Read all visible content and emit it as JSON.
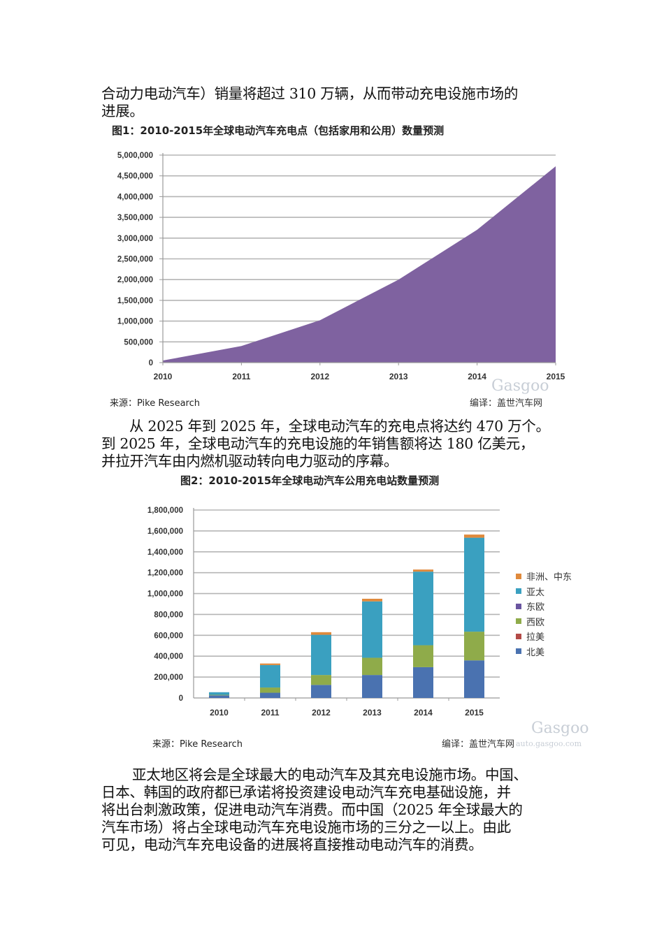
{
  "paragraphs": {
    "p1": [
      "合动力电动汽车）销量将超过 310 万辆，从而带动充电设施市场的",
      "进展。"
    ],
    "p2": [
      "从 2025 年到 2025 年，全球电动汽车的充电点将达约 470 万个。",
      "到 2025 年，全球电动汽车的充电设施的年销售额将达 180 亿美元，",
      "并拉开汽车由内燃机驱动转向电力驱动的序幕。"
    ],
    "p3": [
      "亚太地区将会是全球最大的电动汽车及其充电设施市场。中国、",
      "日本、韩国的政府都已承诺将投资建设电动汽车充电基础设施，并",
      "将出台刺激政策，促进电动汽车消费。而中国（2025 年全球最大的",
      "汽车市场）将占全球电动汽车充电设施市场的三分之一以上。由此",
      "可见，电动汽车充电设备的进展将直接推动电动汽车的消费。"
    ]
  },
  "figure1": {
    "title": "图1：2010-2015年全球电动汽车充电点（包括家用和公用）数量预测",
    "source": "来源：Pike Research",
    "credit": "编译：盖世汽车网",
    "watermark": "Gasgoo",
    "fill_color": "#7f62a0"
  },
  "figure2": {
    "title": "图2：2010-2015年全球电动汽车公用充电站数量预测",
    "source": "来源：Pike Research",
    "credit": "编译：盖世汽车网",
    "watermark": "Gasgoo",
    "watermark_url": "auto.gasgoo.com"
  },
  "chart_data": [
    {
      "type": "area",
      "title": "图1：2010-2015年全球电动汽车充电点（包括家用和公用）数量预测",
      "xlabel": "",
      "ylabel": "",
      "categories": [
        "2010",
        "2011",
        "2012",
        "2013",
        "2014",
        "2015"
      ],
      "values": [
        50000,
        400000,
        1020000,
        2000000,
        3200000,
        4730000
      ],
      "ylim": [
        0,
        5000000
      ],
      "yticks": [
        "0",
        "500,000",
        "1,000,000",
        "1,500,000",
        "2,000,000",
        "2,500,000",
        "3,000,000",
        "3,500,000",
        "4,000,000",
        "4,500,000",
        "5,000,000"
      ],
      "grid": true,
      "legend": null,
      "color": "#7f62a0"
    },
    {
      "type": "bar",
      "stacked": true,
      "title": "图2：2010-2015年全球电动汽车公用充电站数量预测",
      "xlabel": "",
      "ylabel": "",
      "categories": [
        "2010",
        "2011",
        "2012",
        "2013",
        "2014",
        "2015"
      ],
      "ylim": [
        0,
        1800000
      ],
      "yticks": [
        "0",
        "200,000",
        "400,000",
        "600,000",
        "800,000",
        "1,000,000",
        "1,200,000",
        "1,400,000",
        "1,600,000",
        "1,800,000"
      ],
      "grid": true,
      "legend_position": "right",
      "series": [
        {
          "name": "北美",
          "color": "#4a72b0",
          "values": [
            25000,
            50000,
            125000,
            220000,
            295000,
            360000
          ]
        },
        {
          "name": "拉美",
          "color": "#b34a47",
          "values": [
            0,
            0,
            0,
            0,
            0,
            0
          ]
        },
        {
          "name": "西欧",
          "color": "#8fab4a",
          "values": [
            5000,
            50000,
            95000,
            165000,
            210000,
            275000
          ]
        },
        {
          "name": "东欧",
          "color": "#6a55a0",
          "values": [
            0,
            0,
            0,
            0,
            0,
            0
          ]
        },
        {
          "name": "亚太",
          "color": "#3aa0c0",
          "values": [
            25000,
            215000,
            385000,
            540000,
            705000,
            900000
          ]
        },
        {
          "name": "非洲、中东",
          "color": "#e08a3c",
          "values": [
            0,
            15000,
            25000,
            25000,
            20000,
            30000
          ]
        }
      ],
      "legend_order": [
        "非洲、中东",
        "亚太",
        "东欧",
        "西欧",
        "拉美",
        "北美"
      ]
    }
  ]
}
